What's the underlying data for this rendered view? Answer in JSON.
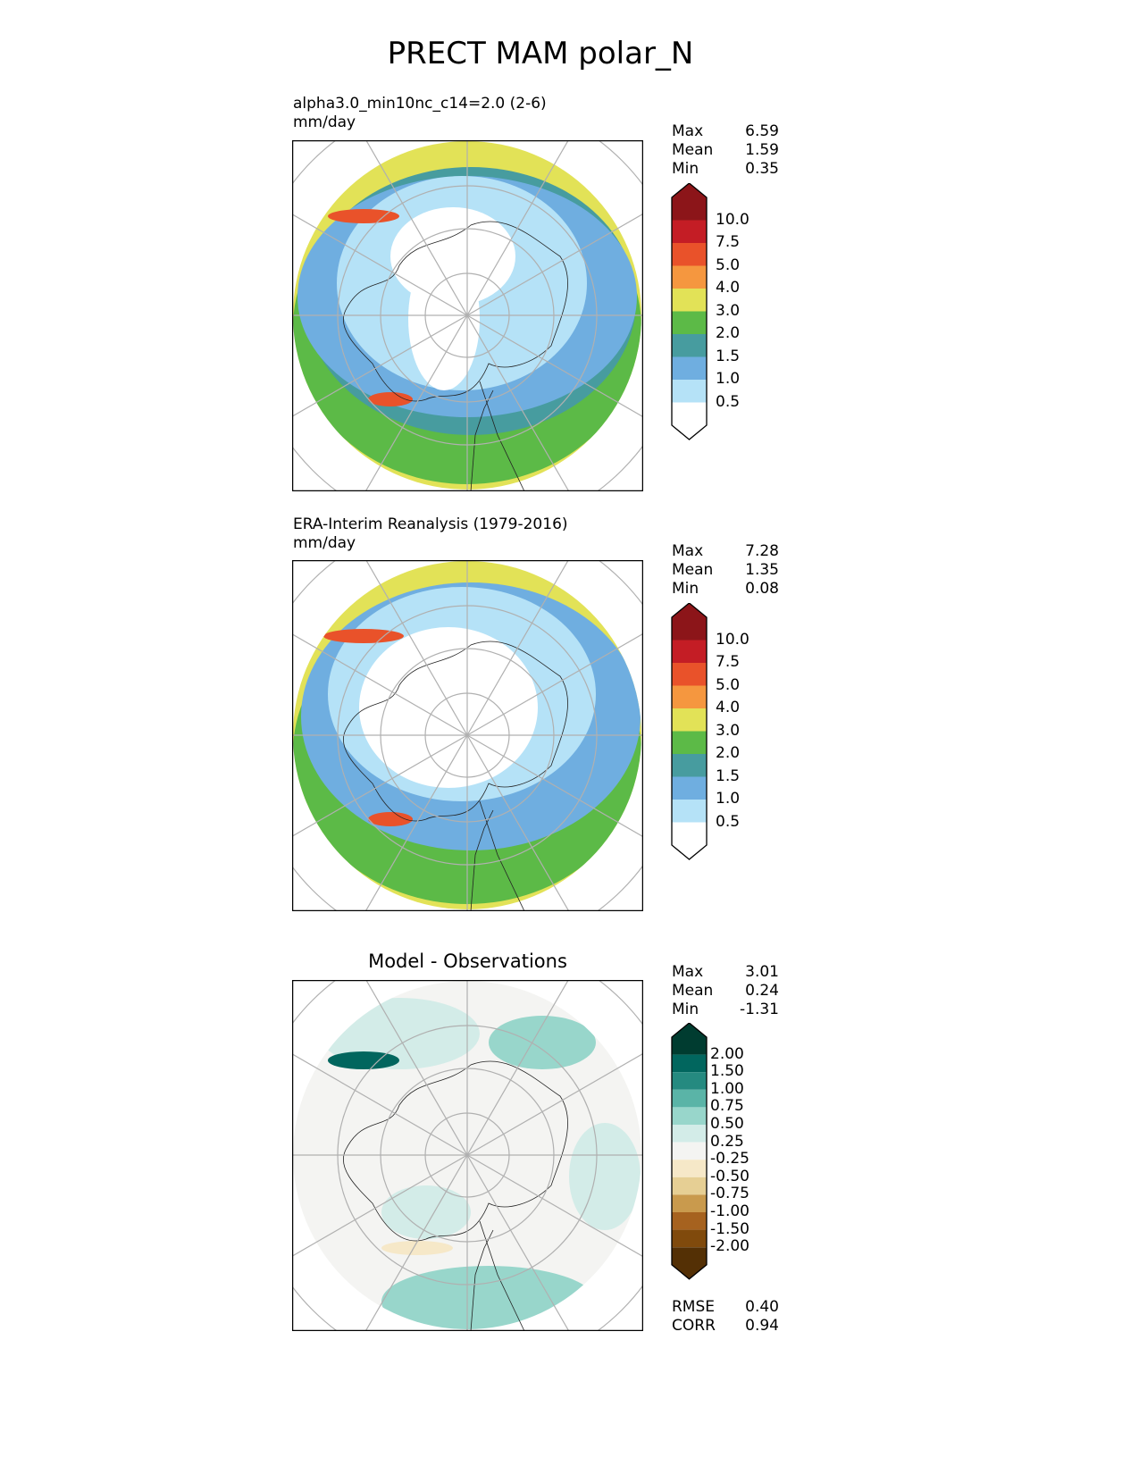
{
  "title": "PRECT MAM polar_N",
  "panels": [
    {
      "title": "alpha3.0_min10nc_c14=2.0 (2-6)",
      "units": "mm/day",
      "stats": [
        {
          "label": "Max",
          "value": "6.59"
        },
        {
          "label": "Mean",
          "value": "1.59"
        },
        {
          "label": "Min",
          "value": "0.35"
        }
      ]
    },
    {
      "title": "ERA-Interim Reanalysis (1979-2016)",
      "units": "mm/day",
      "stats": [
        {
          "label": "Max",
          "value": "7.28"
        },
        {
          "label": "Mean",
          "value": "1.35"
        },
        {
          "label": "Min",
          "value": "0.08"
        }
      ]
    },
    {
      "title": "Model - Observations",
      "stats": [
        {
          "label": "Max",
          "value": "3.01"
        },
        {
          "label": "Mean",
          "value": "0.24"
        },
        {
          "label": "Min",
          "value": "-1.31"
        }
      ],
      "metrics": [
        {
          "label": "RMSE",
          "value": "0.40"
        },
        {
          "label": "CORR",
          "value": "0.94"
        }
      ]
    }
  ],
  "chart_data": {
    "type": "heatmap",
    "projection": "north polar stereographic",
    "colorbar_main": {
      "ticks": [
        "10.0",
        "7.5",
        "5.0",
        "4.0",
        "3.0",
        "2.0",
        "1.5",
        "1.0",
        "0.5"
      ],
      "colors": [
        "#8c1519",
        "#c41d25",
        "#e9522a",
        "#f5973f",
        "#e2e257",
        "#5cba47",
        "#479c9f",
        "#6faee0",
        "#b5e2f7",
        "#ffffff"
      ]
    },
    "colorbar_diff": {
      "ticks": [
        "2.00",
        "1.50",
        "1.00",
        "0.75",
        "0.50",
        "0.25",
        "-0.25",
        "-0.50",
        "-0.75",
        "-1.00",
        "-1.50",
        "-2.00"
      ],
      "colors": [
        "#003c30",
        "#01665e",
        "#258a80",
        "#5ab4a7",
        "#98d6cb",
        "#d3ece8",
        "#f4f4f2",
        "#f6e8c8",
        "#e6cf94",
        "#c99a4d",
        "#a6621f",
        "#804a0c",
        "#543005"
      ]
    }
  }
}
